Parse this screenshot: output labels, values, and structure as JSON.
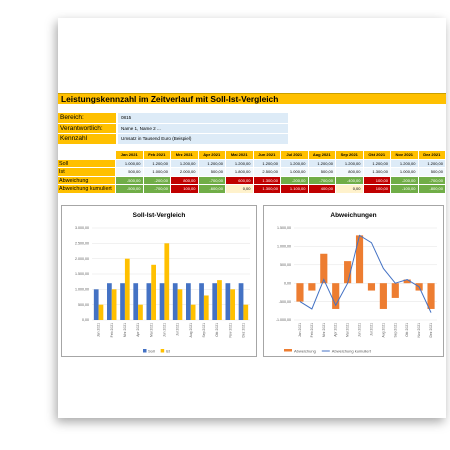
{
  "header": {
    "title": "Leistungskennzahl im Zeitverlauf mit Soll-Ist-Vergleich"
  },
  "info": {
    "rows": [
      {
        "label": "Bereich:",
        "value": "0815"
      },
      {
        "label": "Verantwortlich:",
        "value": "Name 1, Name 2 ..."
      },
      {
        "label": "Kennzahl",
        "value": "Umsatz in Tausend Euro (Beispiel)"
      }
    ]
  },
  "table": {
    "columns": [
      "Jan 2021",
      "Feb 2021",
      "Mrz 2021",
      "Apr 2021",
      "Mai 2021",
      "Jun 2021",
      "Jul 2021",
      "Aug 2021",
      "Sep 2021",
      "Okt 2021",
      "Nov 2021",
      "Dez 2021"
    ],
    "header_color": "#ffc000",
    "rows": [
      {
        "label": "Soll",
        "cells": [
          "1.000,00",
          "1.200,00",
          "1.200,00",
          "1.200,00",
          "1.200,00",
          "1.200,00",
          "1.200,00",
          "1.200,00",
          "1.200,00",
          "1.200,00",
          "1.200,00",
          "1.200,00"
        ],
        "fills": [
          "#ddebf7",
          "#ddebf7",
          "#ddebf7",
          "#ddebf7",
          "#ddebf7",
          "#ddebf7",
          "#ddebf7",
          "#ddebf7",
          "#ddebf7",
          "#ddebf7",
          "#ddebf7",
          "#ddebf7"
        ]
      },
      {
        "label": "Ist",
        "cells": [
          "500,00",
          "1.000,00",
          "2.000,00",
          "500,00",
          "1.800,00",
          "2.500,00",
          "1.000,00",
          "500,00",
          "800,00",
          "1.300,00",
          "1.000,00",
          "500,00"
        ],
        "fills": [
          "#f2f8fd",
          "#f2f8fd",
          "#f2f8fd",
          "#f2f8fd",
          "#f2f8fd",
          "#f2f8fd",
          "#f2f8fd",
          "#f2f8fd",
          "#f2f8fd",
          "#f2f8fd",
          "#f2f8fd",
          "#f2f8fd"
        ]
      },
      {
        "label": "Abweichung",
        "cells": [
          "-500,00",
          "-200,00",
          "800,00",
          "-700,00",
          "600,00",
          "1.300,00",
          "-200,00",
          "-700,00",
          "-400,00",
          "100,00",
          "-200,00",
          "-700,00"
        ],
        "fills": [
          "#70ad47",
          "#70ad47",
          "#c00000",
          "#70ad47",
          "#c00000",
          "#c00000",
          "#70ad47",
          "#70ad47",
          "#70ad47",
          "#c00000",
          "#70ad47",
          "#70ad47"
        ]
      },
      {
        "label": "Abweichung kumuliert",
        "cells": [
          "-500,00",
          "-700,00",
          "100,00",
          "-600,00",
          "0,00",
          "1.300,00",
          "1.100,00",
          "400,00",
          "0,00",
          "100,00",
          "-100,00",
          "-800,00"
        ],
        "fills": [
          "#70ad47",
          "#70ad47",
          "#c00000",
          "#70ad47",
          "#fff2cc",
          "#c00000",
          "#c00000",
          "#c00000",
          "#fff2cc",
          "#c00000",
          "#70ad47",
          "#70ad47"
        ]
      }
    ]
  },
  "chart_data": [
    {
      "type": "bar",
      "title": "Soll-Ist-Vergleich",
      "categories": [
        "Jan 2021",
        "Feb 2021",
        "Mrz 2021",
        "Apr 2021",
        "Mai 2021",
        "Jun 2021",
        "Jul 2021",
        "Aug 2021",
        "Sep 2021",
        "Okt 2021",
        "Nov 2021",
        "Dez 2021"
      ],
      "series": [
        {
          "name": "Soll",
          "color": "#4472c4",
          "values": [
            1000,
            1200,
            1200,
            1200,
            1200,
            1200,
            1200,
            1200,
            1200,
            1200,
            1200,
            1200
          ]
        },
        {
          "name": "Ist",
          "color": "#ffc000",
          "values": [
            500,
            1000,
            2000,
            500,
            1800,
            2500,
            1000,
            500,
            800,
            1300,
            1000,
            500
          ]
        }
      ],
      "ylim": [
        0,
        3000
      ],
      "yticks": [
        {
          "value": 0,
          "label": "0,00"
        },
        {
          "value": 500,
          "label": "500,00"
        },
        {
          "value": 1000,
          "label": "1.000,00"
        },
        {
          "value": 1500,
          "label": "1.500,00"
        },
        {
          "value": 2000,
          "label": "2.000,00"
        },
        {
          "value": 2500,
          "label": "2.500,00"
        },
        {
          "value": 3000,
          "label": "3.000,00"
        }
      ],
      "grid": true
    },
    {
      "type": "combo",
      "title": "Abweichungen",
      "categories": [
        "Jan 2021",
        "Feb 2021",
        "Mrz 2021",
        "Apr 2021",
        "Mai 2021",
        "Jun 2021",
        "Jul 2021",
        "Aug 2021",
        "Sep 2021",
        "Okt 2021",
        "Nov 2021",
        "Dez 2021"
      ],
      "series": [
        {
          "name": "Abweichung",
          "type": "bar",
          "color": "#ed7d31",
          "values": [
            -500,
            -200,
            800,
            -700,
            600,
            1300,
            -200,
            -700,
            -400,
            100,
            -200,
            -700
          ]
        },
        {
          "name": "Abweichung kumuliert",
          "type": "line",
          "color": "#4472c4",
          "values": [
            -500,
            -700,
            100,
            -600,
            0,
            1300,
            1100,
            400,
            0,
            100,
            -100,
            -800
          ]
        }
      ],
      "ylim": [
        -1000,
        1500
      ],
      "yticks": [
        {
          "value": -1000,
          "label": "-1.000,00"
        },
        {
          "value": -500,
          "label": "-500,00"
        },
        {
          "value": 0,
          "label": "0,00"
        },
        {
          "value": 500,
          "label": "500,00"
        },
        {
          "value": 1000,
          "label": "1.000,00"
        },
        {
          "value": 1500,
          "label": "1.500,00"
        }
      ],
      "grid": true
    }
  ]
}
